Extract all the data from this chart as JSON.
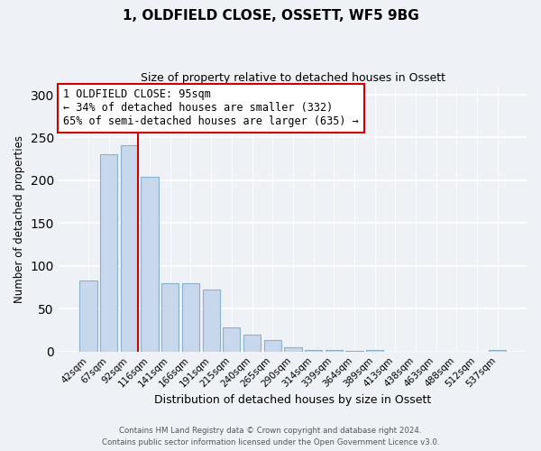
{
  "title": "1, OLDFIELD CLOSE, OSSETT, WF5 9BG",
  "subtitle": "Size of property relative to detached houses in Ossett",
  "xlabel": "Distribution of detached houses by size in Ossett",
  "ylabel": "Number of detached properties",
  "bar_labels": [
    "42sqm",
    "67sqm",
    "92sqm",
    "116sqm",
    "141sqm",
    "166sqm",
    "191sqm",
    "215sqm",
    "240sqm",
    "265sqm",
    "290sqm",
    "314sqm",
    "339sqm",
    "364sqm",
    "389sqm",
    "413sqm",
    "438sqm",
    "463sqm",
    "488sqm",
    "512sqm",
    "537sqm"
  ],
  "bar_values": [
    83,
    230,
    241,
    204,
    80,
    80,
    72,
    28,
    20,
    13,
    5,
    2,
    2,
    1,
    2,
    0,
    0,
    0,
    0,
    0,
    2
  ],
  "bar_color": "#c8d8ec",
  "bar_edgecolor": "#8ab0cc",
  "property_line_color": "#cc0000",
  "annotation_title": "1 OLDFIELD CLOSE: 95sqm",
  "annotation_line1": "← 34% of detached houses are smaller (332)",
  "annotation_line2": "65% of semi-detached houses are larger (635) →",
  "annotation_box_facecolor": "#ffffff",
  "annotation_box_edgecolor": "#cc0000",
  "ylim": [
    0,
    310
  ],
  "yticks": [
    0,
    50,
    100,
    150,
    200,
    250,
    300
  ],
  "footer1": "Contains HM Land Registry data © Crown copyright and database right 2024.",
  "footer2": "Contains public sector information licensed under the Open Government Licence v3.0.",
  "background_color": "#eef2f7"
}
